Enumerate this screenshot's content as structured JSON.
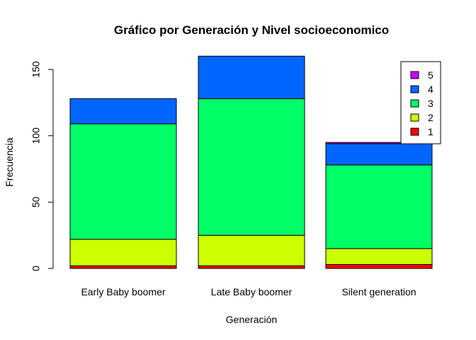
{
  "chart_data": {
    "type": "bar",
    "stacked": true,
    "title": "Gráfico por Generación y Nivel socioeconomico",
    "xlabel": "Generación",
    "ylabel": "Frecuencia",
    "categories": [
      "Early Baby boomer",
      "Late Baby boomer",
      "Silent generation"
    ],
    "series": [
      {
        "name": "1",
        "color": "#ff0000",
        "values": [
          2,
          2,
          3
        ]
      },
      {
        "name": "2",
        "color": "#ccff00",
        "values": [
          20,
          23,
          12
        ]
      },
      {
        "name": "3",
        "color": "#00ff66",
        "values": [
          87,
          103,
          63
        ]
      },
      {
        "name": "4",
        "color": "#0066ff",
        "values": [
          19,
          32,
          16
        ]
      },
      {
        "name": "5",
        "color": "#cc00ff",
        "values": [
          0,
          0,
          1
        ]
      }
    ],
    "ylim": [
      0,
      160
    ],
    "yticks": [
      0,
      50,
      100,
      150
    ],
    "legend": {
      "position": "top-right",
      "order": [
        "5",
        "4",
        "3",
        "2",
        "1"
      ]
    },
    "grid": false
  }
}
